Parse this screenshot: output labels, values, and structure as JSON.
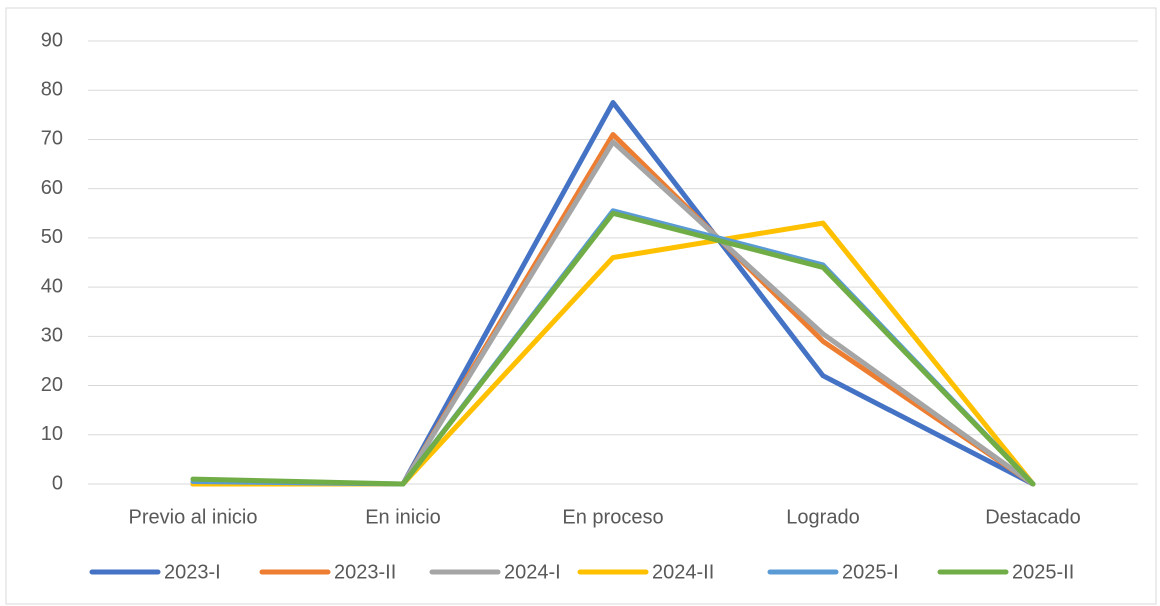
{
  "chart_data": {
    "type": "line",
    "categories": [
      "Previo al inicio",
      "En inicio",
      "En proceso",
      "Logrado",
      "Destacado"
    ],
    "series": [
      {
        "name": "2023-I",
        "color": "#4472c4",
        "values": [
          0,
          0,
          77.5,
          22,
          0
        ]
      },
      {
        "name": "2023-II",
        "color": "#ed7d31",
        "values": [
          0,
          0,
          71,
          29,
          0
        ]
      },
      {
        "name": "2024-I",
        "color": "#a5a5a5",
        "values": [
          0,
          0,
          69.5,
          30.5,
          0
        ]
      },
      {
        "name": "2024-II",
        "color": "#ffc000",
        "values": [
          0,
          0,
          46,
          53,
          0
        ]
      },
      {
        "name": "2025-I",
        "color": "#5b9bd5",
        "values": [
          0.5,
          0,
          55.5,
          44.5,
          0
        ]
      },
      {
        "name": "2025-II",
        "color": "#70ad47",
        "values": [
          1,
          0,
          55,
          44,
          0
        ]
      }
    ],
    "ylim": [
      0,
      90
    ],
    "yticks": [
      0,
      10,
      20,
      30,
      40,
      50,
      60,
      70,
      80,
      90
    ],
    "grid": true,
    "legend": "bottom"
  }
}
